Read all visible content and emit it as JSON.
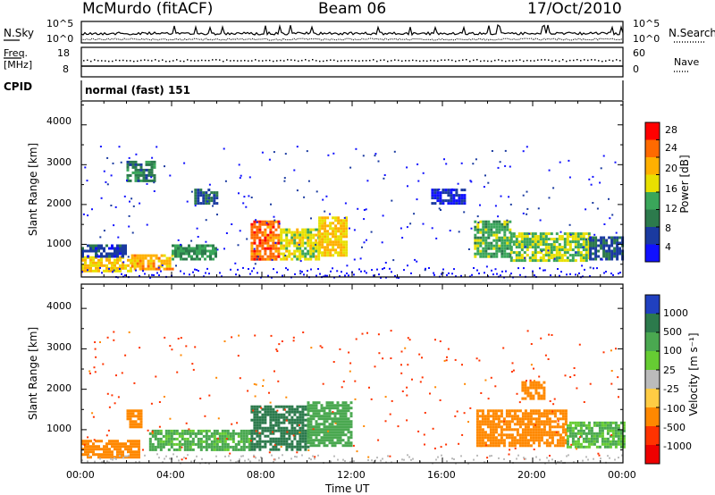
{
  "header": {
    "station": "McMurdo (fitACF)",
    "beam": "Beam 06",
    "date": "17/Oct/2010"
  },
  "noise_panel": {
    "left_label": "N.Sky",
    "right_label": "N.Search",
    "left_ticks": [
      "10^5",
      "10^0"
    ],
    "right_ticks": [
      "10^5",
      "10^0"
    ]
  },
  "freq_panel": {
    "left_label_1": "Freq.",
    "left_label_2": "[MHz]",
    "right_label": "Nave",
    "left_ticks": [
      "18",
      "8"
    ],
    "right_ticks": [
      "60",
      "0"
    ]
  },
  "cpid": {
    "label": "CPID",
    "value": "normal (fast) 151"
  },
  "power_panel": {
    "ylabel": "Slant Range [km]",
    "yticks": [
      "4000",
      "3000",
      "2000",
      "1000"
    ],
    "colorbar_label": "Power [dB]",
    "colorbar_ticks": [
      "28",
      "24",
      "20",
      "16",
      "12",
      "8",
      "4"
    ],
    "colorbar_colors": [
      "#ff0000",
      "#ff6a00",
      "#ffb000",
      "#e8e000",
      "#3aa65a",
      "#2c7a4c",
      "#1a3aa0",
      "#1010ff"
    ]
  },
  "velocity_panel": {
    "ylabel": "Slant Range [km]",
    "yticks": [
      "4000",
      "3000",
      "2000",
      "1000"
    ],
    "colorbar_label": "Velocity [m s⁻¹]",
    "colorbar_ticks": [
      "1000",
      "500",
      "100",
      "25",
      "-25",
      "-100",
      "-500",
      "-1000"
    ],
    "colorbar_colors": [
      "#2040c0",
      "#2c7a4c",
      "#4aa850",
      "#66cc33",
      "#bbbbbb",
      "#ffcc44",
      "#ff8800",
      "#ff3300",
      "#ee0000"
    ]
  },
  "xaxis": {
    "label": "Time UT",
    "ticks": [
      "00:00",
      "04:00",
      "08:00",
      "12:00",
      "16:00",
      "20:00",
      "00:00"
    ]
  },
  "chart_data": [
    {
      "type": "heatmap",
      "title": "Power",
      "xlabel": "Time UT",
      "ylabel": "Slant Range [km]",
      "xlim": [
        0,
        24
      ],
      "ylim": [
        180,
        4600
      ],
      "colorbar_label": "Power [dB]",
      "colorbar_range": [
        0,
        32
      ],
      "regions": [
        {
          "t0": 0.0,
          "t1": 2.2,
          "r0": 300,
          "r1": 700,
          "value": 22
        },
        {
          "t0": 0.0,
          "t1": 2.0,
          "r0": 700,
          "r1": 1000,
          "value": 8
        },
        {
          "t0": 2.2,
          "t1": 4.0,
          "r0": 400,
          "r1": 750,
          "value": 24
        },
        {
          "t0": 4.0,
          "t1": 6.0,
          "r0": 600,
          "r1": 1000,
          "value": 14
        },
        {
          "t0": 7.5,
          "t1": 8.8,
          "r0": 600,
          "r1": 1600,
          "value": 28
        },
        {
          "t0": 8.8,
          "t1": 10.5,
          "r0": 600,
          "r1": 1400,
          "value": 20
        },
        {
          "t0": 10.5,
          "t1": 11.8,
          "r0": 700,
          "r1": 1700,
          "value": 22
        },
        {
          "t0": 17.4,
          "t1": 19.0,
          "r0": 700,
          "r1": 1600,
          "value": 16
        },
        {
          "t0": 19.0,
          "t1": 22.5,
          "r0": 600,
          "r1": 1300,
          "value": 18
        },
        {
          "t0": 22.5,
          "t1": 24.0,
          "r0": 600,
          "r1": 1200,
          "value": 10
        },
        {
          "t0": 2.0,
          "t1": 3.3,
          "r0": 2600,
          "r1": 3100,
          "value": 12
        },
        {
          "t0": 5.0,
          "t1": 6.0,
          "r0": 2000,
          "r1": 2400,
          "value": 10
        },
        {
          "t0": 15.5,
          "t1": 17.0,
          "r0": 2000,
          "r1": 2400,
          "value": 6
        }
      ]
    },
    {
      "type": "heatmap",
      "title": "Velocity",
      "xlabel": "Time UT",
      "ylabel": "Slant Range [km]",
      "xlim": [
        0,
        24
      ],
      "ylim": [
        180,
        4600
      ],
      "colorbar_label": "Velocity [m s⁻¹]",
      "colorbar_range": [
        -1000,
        1000
      ],
      "regions": [
        {
          "t0": 0.0,
          "t1": 2.5,
          "r0": 300,
          "r1": 750,
          "value": -200
        },
        {
          "t0": 2.0,
          "t1": 2.6,
          "r0": 1100,
          "r1": 1500,
          "value": -300
        },
        {
          "t0": 3.0,
          "t1": 7.5,
          "r0": 500,
          "r1": 1000,
          "value": 150
        },
        {
          "t0": 7.5,
          "t1": 10.0,
          "r0": 500,
          "r1": 1600,
          "value": 800
        },
        {
          "t0": 10.0,
          "t1": 12.0,
          "r0": 600,
          "r1": 1700,
          "value": 300
        },
        {
          "t0": 17.5,
          "t1": 21.5,
          "r0": 600,
          "r1": 1500,
          "value": -300
        },
        {
          "t0": 21.5,
          "t1": 24.0,
          "r0": 600,
          "r1": 1200,
          "value": 120
        },
        {
          "t0": 19.5,
          "t1": 20.5,
          "r0": 1800,
          "r1": 2200,
          "value": -300
        }
      ]
    }
  ]
}
